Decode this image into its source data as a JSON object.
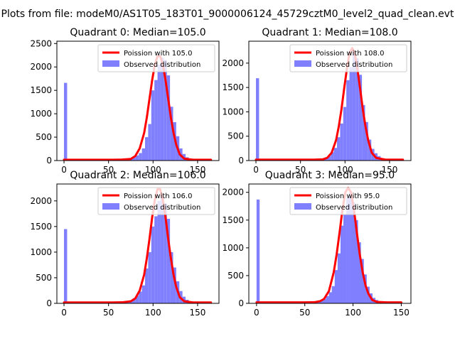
{
  "figure": {
    "suptitle": "Plots from file: modeM0/AS1T05_183T01_9000006124_45729cztM0_level2_quad_clean.evt"
  },
  "colors": {
    "poisson_line": "#ff0000",
    "observed_bars": "#8080ff",
    "axes": "#000000"
  },
  "chart_data": [
    {
      "type": "bar",
      "title": "Quadrant 0: Median=105.0",
      "xlabel": "",
      "ylabel": "",
      "xlim": [
        -8,
        174
      ],
      "ylim": [
        0,
        2550
      ],
      "xticks": [
        0,
        50,
        100,
        150
      ],
      "yticks": [
        0,
        500,
        1000,
        1500,
        2000,
        2500
      ],
      "legend": {
        "placement": "upper right",
        "entries": [
          "Poission with 105.0",
          "Observed distribution"
        ]
      },
      "series": [
        {
          "name": "Observed distribution",
          "kind": "histogram",
          "bin_width": 3.5,
          "bins": [
            [
              0,
              1660
            ],
            [
              56,
              8
            ],
            [
              59.5,
              10
            ],
            [
              63,
              15
            ],
            [
              66.5,
              20
            ],
            [
              70,
              30
            ],
            [
              73.5,
              45
            ],
            [
              77,
              70
            ],
            [
              80.5,
              110
            ],
            [
              84,
              160
            ],
            [
              87.5,
              260
            ],
            [
              91,
              500
            ],
            [
              94.5,
              780
            ],
            [
              98,
              1500
            ],
            [
              101.5,
              1720
            ],
            [
              105,
              2050
            ],
            [
              108.5,
              2200
            ],
            [
              112,
              2150
            ],
            [
              115.5,
              1820
            ],
            [
              119,
              1150
            ],
            [
              122.5,
              820
            ],
            [
              126,
              520
            ],
            [
              129.5,
              260
            ],
            [
              133,
              140
            ],
            [
              136.5,
              70
            ],
            [
              140,
              35
            ],
            [
              143.5,
              15
            ],
            [
              147,
              8
            ]
          ]
        },
        {
          "name": "Poission with 105.0",
          "kind": "line",
          "x": [
            0,
            55,
            65,
            75,
            80,
            85,
            90,
            93,
            96,
            99,
            102,
            105,
            108,
            111,
            114,
            117,
            120,
            123,
            126,
            130,
            135,
            145,
            165
          ],
          "y": [
            18,
            18,
            20,
            35,
            95,
            260,
            590,
            920,
            1320,
            1720,
            2050,
            2230,
            2230,
            2050,
            1720,
            1320,
            920,
            590,
            340,
            130,
            40,
            18,
            18
          ]
        }
      ]
    },
    {
      "type": "bar",
      "title": "Quadrant 1: Median=108.0",
      "xlabel": "",
      "ylabel": "",
      "xlim": [
        -8,
        174
      ],
      "ylim": [
        0,
        2450
      ],
      "xticks": [
        0,
        50,
        100,
        150
      ],
      "yticks": [
        0,
        500,
        1000,
        1500,
        2000
      ],
      "legend": {
        "placement": "upper right",
        "entries": [
          "Poission with 108.0",
          "Observed distribution"
        ]
      },
      "series": [
        {
          "name": "Observed distribution",
          "kind": "histogram",
          "bin_width": 3.5,
          "bins": [
            [
              0,
              1690
            ],
            [
              59.5,
              8
            ],
            [
              63,
              10
            ],
            [
              66.5,
              15
            ],
            [
              70,
              20
            ],
            [
              73.5,
              25
            ],
            [
              77,
              40
            ],
            [
              80.5,
              90
            ],
            [
              84,
              170
            ],
            [
              87.5,
              260
            ],
            [
              91,
              480
            ],
            [
              94.5,
              760
            ],
            [
              98,
              1100
            ],
            [
              101.5,
              1650
            ],
            [
              105,
              1920
            ],
            [
              108.5,
              2230
            ],
            [
              112,
              2100
            ],
            [
              115.5,
              1760
            ],
            [
              119,
              1140
            ],
            [
              122.5,
              790
            ],
            [
              126,
              430
            ],
            [
              129.5,
              240
            ],
            [
              133,
              150
            ],
            [
              136.5,
              90
            ],
            [
              140,
              40
            ],
            [
              143.5,
              20
            ],
            [
              147,
              10
            ]
          ]
        },
        {
          "name": "Poission with 108.0",
          "kind": "line",
          "x": [
            0,
            55,
            65,
            75,
            80,
            85,
            90,
            93,
            96,
            99,
            102,
            105,
            108,
            111,
            114,
            117,
            120,
            123,
            126,
            130,
            135,
            145,
            165
          ],
          "y": [
            18,
            18,
            18,
            25,
            55,
            160,
            420,
            700,
            1050,
            1470,
            1870,
            2200,
            2310,
            2200,
            1870,
            1470,
            1050,
            700,
            420,
            160,
            55,
            20,
            18
          ]
        }
      ]
    },
    {
      "type": "bar",
      "title": "Quadrant 2: Median=106.0",
      "xlabel": "",
      "ylabel": "",
      "xlim": [
        -8,
        174
      ],
      "ylim": [
        0,
        2330
      ],
      "xticks": [
        0,
        50,
        100,
        150
      ],
      "yticks": [
        0,
        500,
        1000,
        1500,
        2000
      ],
      "legend": {
        "placement": "upper right",
        "entries": [
          "Poission with 106.0",
          "Observed distribution"
        ]
      },
      "series": [
        {
          "name": "Observed distribution",
          "kind": "histogram",
          "bin_width": 3.5,
          "bins": [
            [
              0,
              1450
            ],
            [
              56,
              8
            ],
            [
              59.5,
              10
            ],
            [
              63,
              15
            ],
            [
              66.5,
              20
            ],
            [
              70,
              30
            ],
            [
              73.5,
              60
            ],
            [
              77,
              100
            ],
            [
              80.5,
              150
            ],
            [
              84,
              230
            ],
            [
              87.5,
              350
            ],
            [
              91,
              680
            ],
            [
              94.5,
              1000
            ],
            [
              98,
              1500
            ],
            [
              101.5,
              1700
            ],
            [
              105,
              2000
            ],
            [
              108.5,
              2130
            ],
            [
              112,
              1950
            ],
            [
              115.5,
              1650
            ],
            [
              119,
              1000
            ],
            [
              122.5,
              700
            ],
            [
              126,
              430
            ],
            [
              129.5,
              240
            ],
            [
              133,
              130
            ],
            [
              136.5,
              70
            ],
            [
              140,
              30
            ],
            [
              143.5,
              15
            ],
            [
              147,
              8
            ]
          ]
        },
        {
          "name": "Poission with 106.0",
          "kind": "line",
          "x": [
            0,
            55,
            65,
            75,
            80,
            85,
            90,
            93,
            96,
            99,
            102,
            105,
            108,
            111,
            114,
            117,
            120,
            123,
            126,
            130,
            135,
            145,
            165
          ],
          "y": [
            18,
            18,
            20,
            40,
            95,
            250,
            560,
            880,
            1260,
            1680,
            2020,
            2230,
            2230,
            2020,
            1680,
            1260,
            880,
            560,
            320,
            120,
            40,
            18,
            18
          ]
        }
      ]
    },
    {
      "type": "bar",
      "title": "Quadrant 3: Median=95.0",
      "xlabel": "",
      "ylabel": "",
      "xlim": [
        -8,
        160
      ],
      "ylim": [
        0,
        2150
      ],
      "xticks": [
        0,
        50,
        100,
        150
      ],
      "yticks": [
        0,
        500,
        1000,
        1500,
        2000
      ],
      "legend": {
        "placement": "upper right",
        "entries": [
          "Poission with 95.0",
          "Observed distribution"
        ]
      },
      "series": [
        {
          "name": "Observed distribution",
          "kind": "histogram",
          "bin_width": 3.2,
          "bins": [
            [
              0,
              1870
            ],
            [
              51,
              8
            ],
            [
              54,
              10
            ],
            [
              57,
              15
            ],
            [
              60,
              25
            ],
            [
              63,
              40
            ],
            [
              66,
              55
            ],
            [
              69,
              80
            ],
            [
              72,
              130
            ],
            [
              75,
              200
            ],
            [
              78,
              310
            ],
            [
              81,
              600
            ],
            [
              84,
              900
            ],
            [
              87,
              1400
            ],
            [
              90,
              1600
            ],
            [
              93,
              1900
            ],
            [
              96,
              2000
            ],
            [
              99,
              1820
            ],
            [
              102,
              1500
            ],
            [
              105,
              1100
            ],
            [
              108,
              800
            ],
            [
              111,
              520
            ],
            [
              114,
              300
            ],
            [
              117,
              180
            ],
            [
              120,
              100
            ],
            [
              123,
              60
            ],
            [
              126,
              30
            ],
            [
              129,
              15
            ],
            [
              132,
              8
            ]
          ]
        },
        {
          "name": "Poission with 95.0",
          "kind": "line",
          "x": [
            0,
            50,
            60,
            66,
            70,
            75,
            80,
            83,
            86,
            89,
            92,
            95,
            98,
            101,
            104,
            107,
            110,
            113,
            116,
            120,
            125,
            135,
            150
          ],
          "y": [
            18,
            18,
            20,
            40,
            80,
            220,
            560,
            880,
            1270,
            1680,
            2000,
            2080,
            2000,
            1680,
            1270,
            880,
            560,
            320,
            170,
            60,
            25,
            18,
            18
          ]
        }
      ]
    }
  ]
}
